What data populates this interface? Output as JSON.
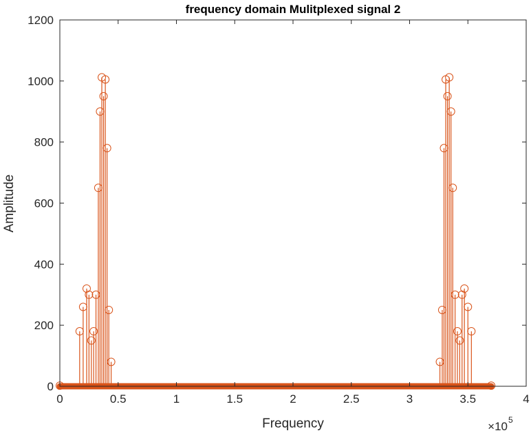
{
  "chart_data": {
    "type": "scatter",
    "style": "stem",
    "title": "frequency domain Mulitplexed signal 2",
    "xlabel": "Frequency",
    "ylabel": "Amplitude",
    "x_exponent_label": "×10",
    "x_exponent_power": "5",
    "xlim": [
      0,
      400000
    ],
    "ylim": [
      0,
      1200
    ],
    "x_tick_values": [
      0,
      50000,
      100000,
      150000,
      200000,
      250000,
      300000,
      350000,
      400000
    ],
    "x_tick_labels": [
      "0",
      "0.5",
      "1",
      "1.5",
      "2",
      "2.5",
      "3",
      "3.5",
      "4"
    ],
    "y_tick_values": [
      0,
      200,
      400,
      600,
      800,
      1000,
      1200
    ],
    "y_tick_labels": [
      "0",
      "200",
      "400",
      "600",
      "800",
      "1000",
      "1200"
    ],
    "color": "#D95319",
    "grid": false,
    "legend": "none",
    "series": [
      {
        "x": [
          0,
          17000,
          20000,
          23000,
          25000,
          27000,
          29000,
          31000,
          33000,
          34500,
          36000,
          37500,
          39000,
          40500,
          42000,
          44000
        ],
        "y": [
          2,
          180,
          260,
          320,
          300,
          150,
          180,
          300,
          650,
          900,
          1012,
          950,
          1005,
          780,
          250,
          80
        ]
      },
      {
        "x": [
          326000,
          328000,
          329500,
          331000,
          332500,
          334000,
          335500,
          337000,
          339000,
          341000,
          343000,
          345000,
          347000,
          350000,
          353000,
          370000
        ],
        "y": [
          80,
          250,
          780,
          1005,
          950,
          1012,
          900,
          650,
          300,
          180,
          150,
          300,
          320,
          260,
          180,
          2
        ]
      }
    ]
  }
}
